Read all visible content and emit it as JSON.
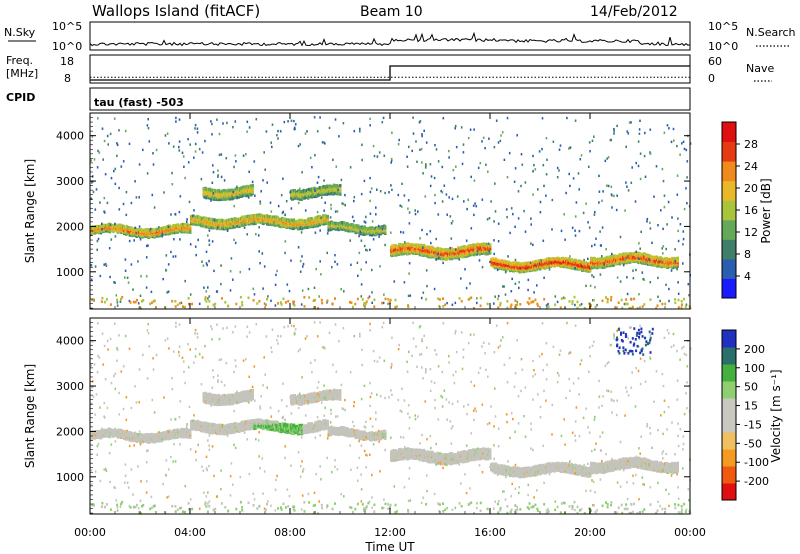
{
  "header": {
    "station": "Wallops Island (fitACF)",
    "beam": "Beam 10",
    "date": "14/Feb/2012"
  },
  "panels": {
    "nsky": {
      "left_label": "N.Sky",
      "right_label": "N.Search",
      "left_ticks": [
        "10^5",
        "10^0"
      ],
      "right_ticks": [
        "10^5",
        "10^0"
      ]
    },
    "freq": {
      "left_label_1": "Freq.",
      "left_label_2": "[MHz]",
      "right_label": "Nave",
      "left_ticks": [
        "18",
        "8"
      ],
      "right_ticks": [
        "60",
        "0"
      ]
    },
    "cpid": {
      "left_label": "CPID",
      "value_text": "tau (fast) -503"
    }
  },
  "power": {
    "ylabel": "Slant Range [km]",
    "colorbar_label": "Power [dB]",
    "colorbar_ticks": [
      "28",
      "24",
      "20",
      "16",
      "12",
      "8",
      "4"
    ]
  },
  "velocity": {
    "ylabel": "Slant Range [km]",
    "colorbar_label": "Velocity [m s⁻¹]",
    "colorbar_ticks": [
      "200",
      "100",
      "50",
      "15",
      "-15",
      "-50",
      "-100",
      "-200"
    ]
  },
  "xaxis": {
    "label": "Time UT"
  },
  "chart_data": {
    "type": "heatmap",
    "title": "Wallops Island (fitACF) Beam 10 14/Feb/2012",
    "x": {
      "label": "Time UT",
      "ticks": [
        "00:00",
        "04:00",
        "08:00",
        "12:00",
        "16:00",
        "20:00",
        "00:00"
      ],
      "range_hours": [
        0,
        24
      ]
    },
    "y": {
      "label": "Slant Range [km]",
      "ticks": [
        1000,
        2000,
        3000,
        4000
      ],
      "range_km": [
        180,
        4500
      ]
    },
    "frequency_mhz": {
      "segments": [
        {
          "start_hour": 0,
          "end_hour": 12,
          "value": 10.5
        },
        {
          "start_hour": 12,
          "end_hour": 24,
          "value": 15.5
        }
      ]
    },
    "nave": {
      "value": 8
    },
    "power_colorscale": {
      "range_db": [
        0,
        30
      ],
      "colors": [
        "#1a1aff",
        "#2a5fb0",
        "#3f7f6a",
        "#66a85a",
        "#a8c43a",
        "#e8b82a",
        "#f08a1a",
        "#e83a12",
        "#e01010"
      ]
    },
    "velocity_colorscale": {
      "range_ms": [
        -250,
        250
      ],
      "colors": [
        "#e01010",
        "#f05a10",
        "#f59a20",
        "#f0c060",
        "#c8c8c0",
        "#c8c8c0",
        "#8ed070",
        "#44b040",
        "#2a6f6a",
        "#2030c0"
      ]
    },
    "power_echo_bands": [
      {
        "start_hour": 0.0,
        "end_hour": 4.0,
        "range_km": 1950,
        "width_km": 160,
        "power_db": 24
      },
      {
        "start_hour": 4.0,
        "end_hour": 9.5,
        "range_km": 2150,
        "width_km": 180,
        "power_db": 22
      },
      {
        "start_hour": 9.5,
        "end_hour": 11.8,
        "range_km": 2000,
        "width_km": 150,
        "power_db": 18
      },
      {
        "start_hour": 12.0,
        "end_hour": 16.0,
        "range_km": 1500,
        "width_km": 220,
        "power_db": 26
      },
      {
        "start_hour": 16.0,
        "end_hour": 20.0,
        "range_km": 1200,
        "width_km": 180,
        "power_db": 28
      },
      {
        "start_hour": 20.0,
        "end_hour": 23.5,
        "range_km": 1300,
        "width_km": 200,
        "power_db": 26
      },
      {
        "start_hour": 4.5,
        "end_hour": 6.5,
        "range_km": 2800,
        "width_km": 200,
        "power_db": 20
      },
      {
        "start_hour": 8.0,
        "end_hour": 10.0,
        "range_km": 2800,
        "width_km": 180,
        "power_db": 18
      }
    ]
  }
}
